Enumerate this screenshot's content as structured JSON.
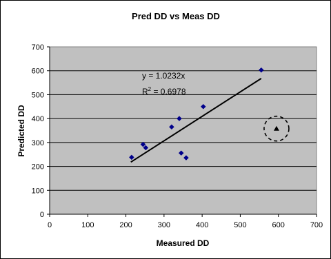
{
  "chart_data": {
    "type": "scatter",
    "title": "Pred DD vs Meas DD",
    "xlabel": "Measured DD",
    "ylabel": "Predicted DD",
    "xlim": [
      0,
      700
    ],
    "ylim": [
      0,
      700
    ],
    "xticks": [
      "0",
      "100",
      "200",
      "300",
      "400",
      "500",
      "600",
      "700"
    ],
    "yticks": [
      "0",
      "100",
      "200",
      "300",
      "400",
      "500",
      "600",
      "700"
    ],
    "grid": "horizontal",
    "plot_background": "#c0c0c0",
    "series": [
      {
        "marker": "diamond",
        "color": "#00008b",
        "points": [
          {
            "x": 215,
            "y": 238
          },
          {
            "x": 245,
            "y": 292
          },
          {
            "x": 252,
            "y": 278
          },
          {
            "x": 320,
            "y": 365
          },
          {
            "x": 340,
            "y": 400
          },
          {
            "x": 345,
            "y": 256
          },
          {
            "x": 358,
            "y": 236
          },
          {
            "x": 403,
            "y": 450
          },
          {
            "x": 555,
            "y": 603
          }
        ]
      }
    ],
    "trendline": {
      "x_start": 213,
      "x_end": 555,
      "slope": 1.0232,
      "color": "#000000"
    },
    "annotations": {
      "equation": "y = 1.0232x",
      "r_squared_prefix": "R",
      "r_squared_sup": "2",
      "r_squared_value": " = 0.6978",
      "outlier_point": {
        "x": 595,
        "y": 358,
        "marker": "triangle",
        "color": "#000000"
      },
      "outlier_circle": {
        "x": 595,
        "y": 358,
        "style": "dashed"
      }
    }
  }
}
